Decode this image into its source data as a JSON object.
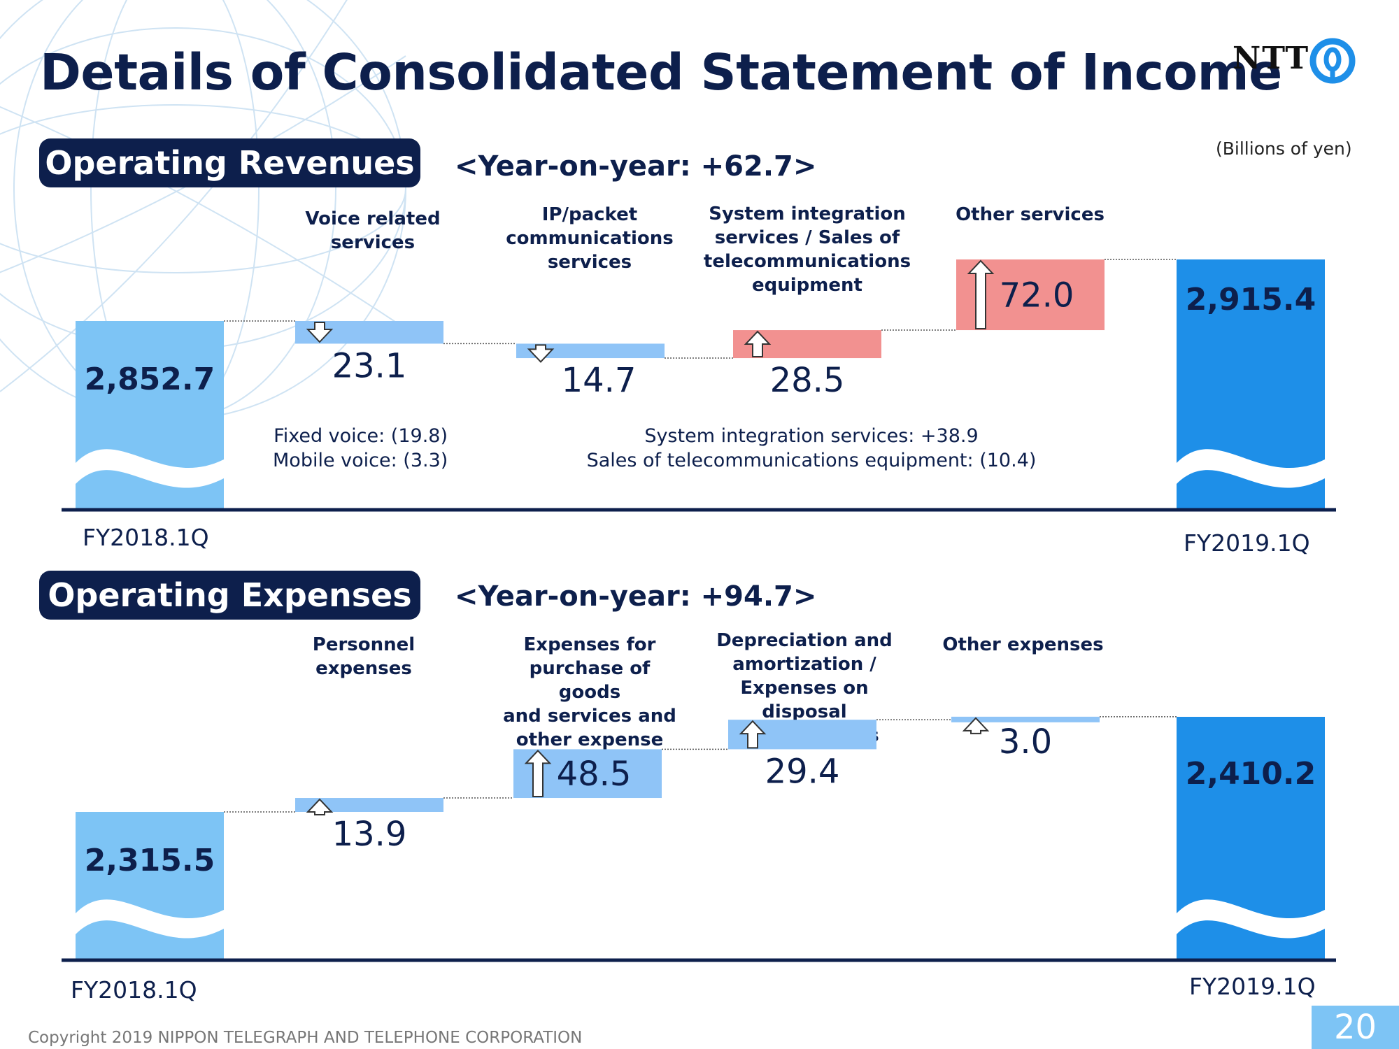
{
  "title": "Details of Consolidated Statement of Income",
  "logo": {
    "text": "NTT"
  },
  "units": "(Billions of yen)",
  "footer": "Copyright 2019 NIPPON TELEGRAPH AND TELEPHONE CORPORATION",
  "page_number": "20",
  "colors": {
    "navy": "#0d1f4c",
    "start_bar": "#7dc4f5",
    "end_bar": "#1e8fe8",
    "change_blue": "#8fc4f7",
    "change_red": "#f29190"
  },
  "chart_data": [
    {
      "type": "bar",
      "subtype": "waterfall",
      "heading": "Operating Revenues",
      "yoy": "<Year-on-year: +62.7>",
      "start": {
        "label": "FY2018.1Q",
        "value": 2852.7,
        "value_label": "2,852.7"
      },
      "end": {
        "label": "FY2019.1Q",
        "value": 2915.4,
        "value_label": "2,915.4"
      },
      "categories": [
        "Voice related services",
        "IP/packet communications services",
        "System integration services / Sales of telecommunications equipment",
        "Other services"
      ],
      "changes": [
        {
          "value": -23.1,
          "label": "23.1",
          "direction": "down",
          "color": "#8fc4f7"
        },
        {
          "value": -14.7,
          "label": "14.7",
          "direction": "down",
          "color": "#8fc4f7"
        },
        {
          "value": 28.5,
          "label": "28.5",
          "direction": "up",
          "color": "#f29190"
        },
        {
          "value": 72.0,
          "label": "72.0",
          "direction": "up",
          "color": "#f29190"
        }
      ],
      "notes": [
        [
          "Fixed voice: (19.8)",
          "Mobile voice: (3.3)"
        ],
        [
          "System integration services: +38.9",
          "Sales of telecommunications equipment: (10.4)"
        ]
      ]
    },
    {
      "type": "bar",
      "subtype": "waterfall",
      "heading": "Operating Expenses",
      "yoy": "<Year-on-year: +94.7>",
      "start": {
        "label": "FY2018.1Q",
        "value": 2315.5,
        "value_label": "2,315.5"
      },
      "end": {
        "label": "FY2019.1Q",
        "value": 2410.2,
        "value_label": "2,410.2"
      },
      "categories": [
        "Personnel expenses",
        "Expenses for purchase of goods and services and other expense",
        "Depreciation and amortization / Expenses on disposal of fixed assets",
        "Other expenses"
      ],
      "changes": [
        {
          "value": 13.9,
          "label": "13.9",
          "direction": "up",
          "color": "#8fc4f7"
        },
        {
          "value": 48.5,
          "label": "48.5",
          "direction": "up",
          "color": "#8fc4f7"
        },
        {
          "value": 29.4,
          "label": "29.4",
          "direction": "up",
          "color": "#8fc4f7"
        },
        {
          "value": 3.0,
          "label": "3.0",
          "direction": "up",
          "color": "#8fc4f7"
        }
      ],
      "notes": []
    }
  ],
  "category_lines": [
    [
      [
        "Voice related",
        "services"
      ],
      [
        "IP/packet",
        "communications",
        "services"
      ],
      [
        "System integration",
        "services / Sales of",
        "telecommunications",
        "equipment"
      ],
      [
        "Other services"
      ]
    ],
    [
      [
        "Personnel expenses"
      ],
      [
        "Expenses for",
        "purchase of goods",
        "and services and",
        "other expense"
      ],
      [
        "Depreciation and",
        "amortization /",
        "Expenses on disposal",
        "of fixed assets"
      ],
      [
        "Other expenses"
      ]
    ]
  ]
}
